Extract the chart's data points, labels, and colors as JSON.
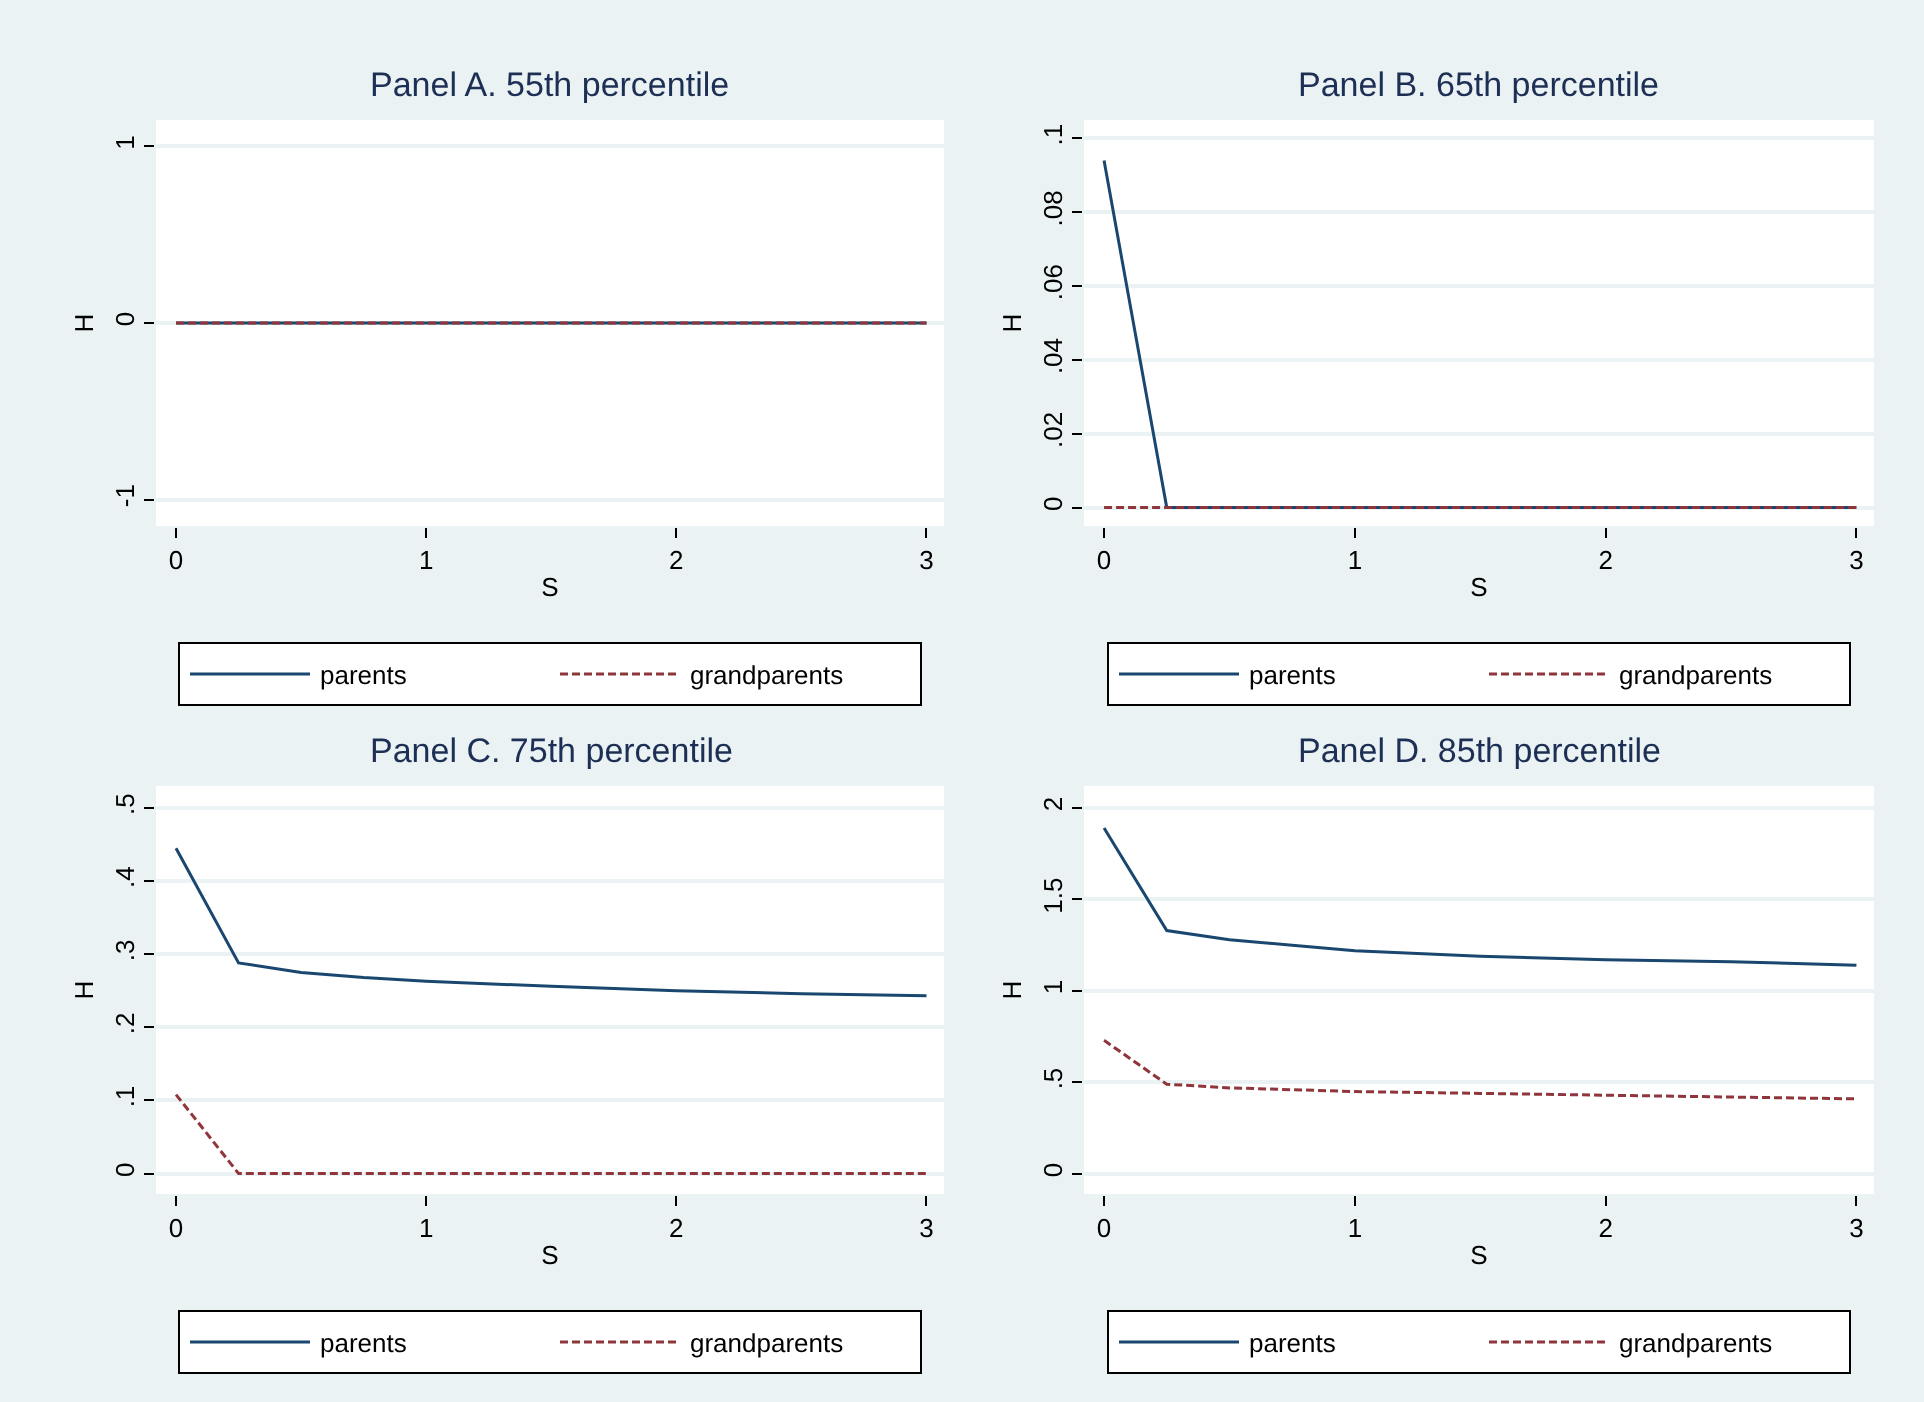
{
  "chart_data": [
    {
      "type": "line",
      "title": "Panel A. 55th percentile",
      "xlabel": "S",
      "ylabel": "H",
      "x": [
        0,
        0.25,
        0.5,
        0.75,
        1,
        1.5,
        2,
        2.5,
        3
      ],
      "series": [
        {
          "name": "parents",
          "color": "#1a476f",
          "line_style": "solid",
          "values": [
            0,
            0,
            0,
            0,
            0,
            0,
            0,
            0,
            0
          ]
        },
        {
          "name": "grandparents",
          "color": "#90353b",
          "line_style": "dashed",
          "values": [
            0,
            0,
            0,
            0,
            0,
            0,
            0,
            0,
            0
          ]
        }
      ],
      "xlim": [
        -0.08,
        3.07
      ],
      "xticks": [
        0,
        1,
        2,
        3
      ],
      "ylim": [
        -1.15,
        1.15
      ],
      "yticks": [
        -1,
        0,
        1
      ],
      "grid": "y",
      "legend": "bottom"
    },
    {
      "type": "line",
      "title": "Panel B. 65th percentile",
      "xlabel": "S",
      "ylabel": "H",
      "x": [
        0,
        0.25,
        0.5,
        0.75,
        1,
        1.5,
        2,
        2.5,
        3
      ],
      "series": [
        {
          "name": "parents",
          "color": "#1a476f",
          "line_style": "solid",
          "values": [
            0.094,
            0,
            0,
            0,
            0,
            0,
            0,
            0,
            0
          ]
        },
        {
          "name": "grandparents",
          "color": "#90353b",
          "line_style": "dashed",
          "values": [
            0,
            0,
            0,
            0,
            0,
            0,
            0,
            0,
            0
          ]
        }
      ],
      "xlim": [
        -0.08,
        3.07
      ],
      "xticks": [
        0,
        1,
        2,
        3
      ],
      "ylim": [
        -0.005,
        0.105
      ],
      "yticks": [
        0,
        {
          "value": 0.02,
          "label": ".02"
        },
        {
          "value": 0.04,
          "label": ".04"
        },
        {
          "value": 0.06,
          "label": ".06"
        },
        {
          "value": 0.08,
          "label": ".08"
        },
        {
          "value": 0.1,
          "label": ".1"
        }
      ],
      "grid": "y",
      "legend": "bottom"
    },
    {
      "type": "line",
      "title": "Panel C. 75th percentile",
      "xlabel": "S",
      "ylabel": "H",
      "x": [
        0,
        0.25,
        0.5,
        0.75,
        1,
        1.5,
        2,
        2.5,
        3
      ],
      "series": [
        {
          "name": "parents",
          "color": "#1a476f",
          "line_style": "solid",
          "values": [
            0.445,
            0.288,
            0.275,
            0.268,
            0.263,
            0.256,
            0.25,
            0.246,
            0.243
          ]
        },
        {
          "name": "grandparents",
          "color": "#90353b",
          "line_style": "dashed",
          "values": [
            0.108,
            0,
            0,
            0,
            0,
            0,
            0,
            0,
            0
          ]
        }
      ],
      "xlim": [
        -0.08,
        3.07
      ],
      "xticks": [
        0,
        1,
        2,
        3
      ],
      "ylim": [
        -0.028,
        0.53
      ],
      "yticks": [
        0,
        {
          "value": 0.1,
          "label": ".1"
        },
        {
          "value": 0.2,
          "label": ".2"
        },
        {
          "value": 0.3,
          "label": ".3"
        },
        {
          "value": 0.4,
          "label": ".4"
        },
        {
          "value": 0.5,
          "label": ".5"
        }
      ],
      "grid": "y",
      "legend": "bottom"
    },
    {
      "type": "line",
      "title": "Panel D. 85th percentile",
      "xlabel": "S",
      "ylabel": "H",
      "x": [
        0,
        0.25,
        0.5,
        0.75,
        1,
        1.5,
        2,
        2.5,
        3
      ],
      "series": [
        {
          "name": "parents",
          "color": "#1a476f",
          "line_style": "solid",
          "values": [
            1.89,
            1.33,
            1.28,
            1.25,
            1.22,
            1.19,
            1.17,
            1.16,
            1.14
          ]
        },
        {
          "name": "grandparents",
          "color": "#90353b",
          "line_style": "dashed",
          "values": [
            0.73,
            0.49,
            0.47,
            0.46,
            0.45,
            0.44,
            0.43,
            0.42,
            0.41
          ]
        }
      ],
      "xlim": [
        -0.08,
        3.07
      ],
      "xticks": [
        0,
        1,
        2,
        3
      ],
      "ylim": [
        -0.11,
        2.12
      ],
      "yticks": [
        0,
        {
          "value": 0.5,
          "label": ".5"
        },
        1,
        {
          "value": 1.5,
          "label": "1.5"
        },
        2
      ],
      "grid": "y",
      "legend": "bottom"
    }
  ]
}
